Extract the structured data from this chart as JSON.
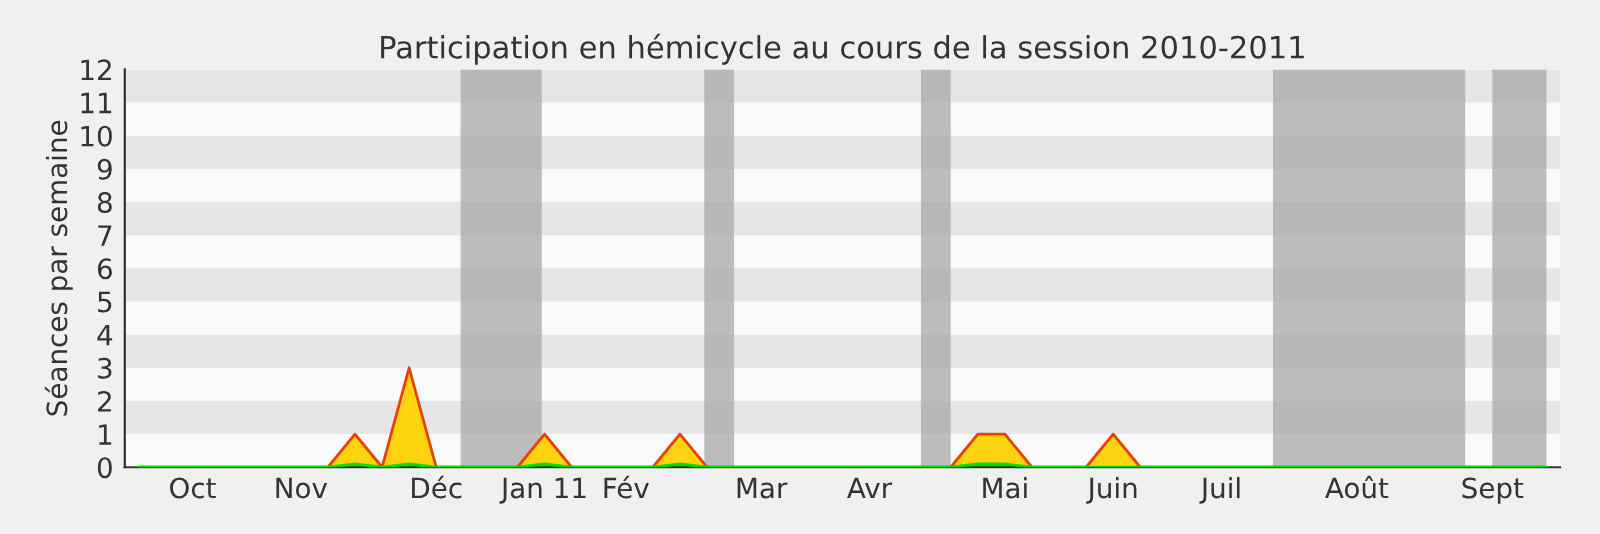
{
  "chart_data": {
    "type": "area",
    "title": "Participation en hémicycle au cours de la session 2010-2011",
    "ylabel": "Séances par semaine",
    "categories": [
      null,
      null,
      "Oct",
      null,
      null,
      null,
      "Nov",
      null,
      null,
      null,
      null,
      "Déc",
      null,
      null,
      null,
      "Jan 11",
      null,
      null,
      "Fév",
      null,
      null,
      null,
      null,
      "Mar",
      null,
      null,
      null,
      "Avr",
      null,
      null,
      null,
      null,
      "Mai",
      null,
      null,
      null,
      "Juin",
      null,
      null,
      null,
      "Juil",
      null,
      null,
      null,
      null,
      "Août",
      null,
      null,
      null,
      null,
      "Sept",
      null,
      null
    ],
    "series": [
      {
        "color": "#ffd30f",
        "values": [
          0,
          0,
          0,
          0,
          0,
          0,
          0,
          0,
          1,
          0,
          3,
          0,
          0,
          0,
          0,
          1,
          0,
          0,
          0,
          0,
          1,
          0,
          0,
          0,
          0,
          0,
          0,
          0,
          0,
          0,
          0,
          1,
          1,
          0,
          0,
          0,
          1,
          0,
          0,
          0,
          0,
          0,
          0,
          0,
          0,
          0,
          0,
          0,
          0,
          0,
          0,
          0,
          0
        ]
      },
      {
        "color": "#00e000",
        "values": [
          0,
          0,
          0,
          0,
          0,
          0,
          0,
          0,
          0.1,
          0,
          0.1,
          0,
          0,
          0,
          0,
          0.1,
          0,
          0,
          0,
          0,
          0.1,
          0,
          0,
          0,
          0,
          0,
          0,
          0,
          0,
          0,
          0,
          0.1,
          0.1,
          0,
          0,
          0,
          0,
          0,
          0,
          0,
          0,
          0,
          0,
          0,
          0,
          0,
          0,
          0,
          0,
          0,
          0,
          0,
          0
        ]
      }
    ],
    "ylim": [
      0,
      12
    ],
    "yticks": [
      0,
      1,
      2,
      3,
      4,
      5,
      6,
      7,
      8,
      9,
      10,
      11,
      12
    ],
    "legend": false
  }
}
